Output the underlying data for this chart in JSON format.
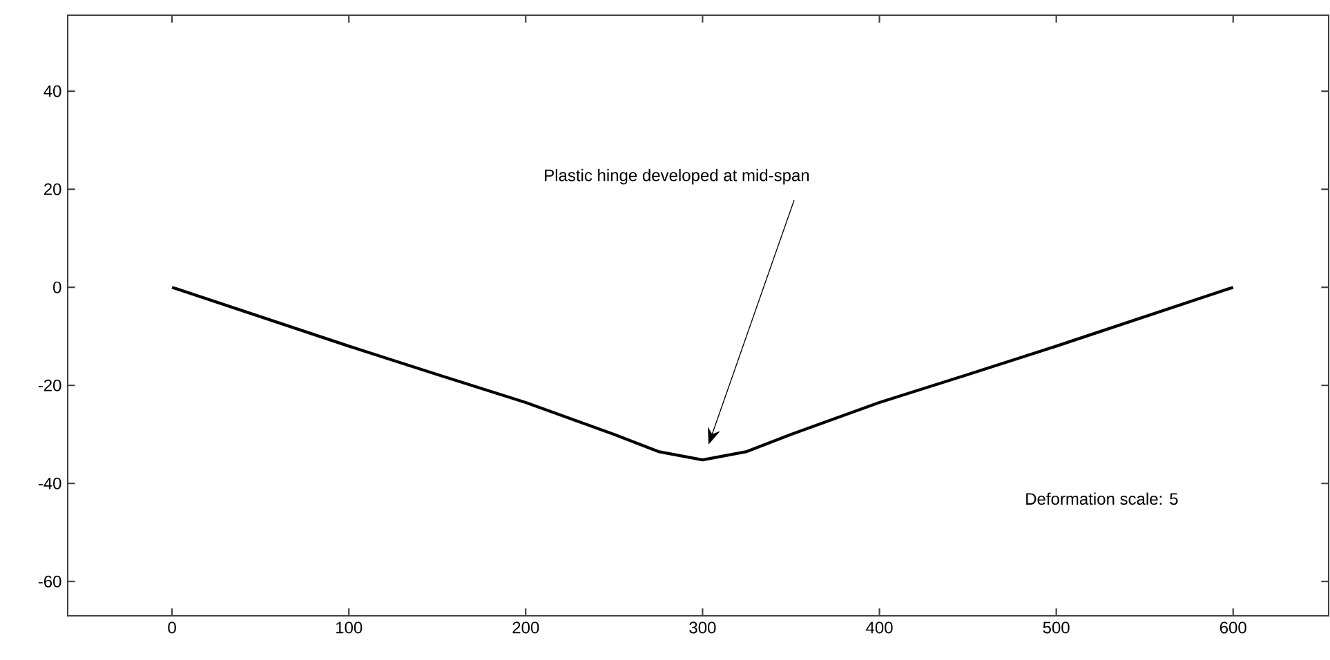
{
  "chart_data": {
    "type": "line",
    "x": [
      0,
      50,
      100,
      150,
      200,
      250,
      275,
      300,
      325,
      350,
      400,
      450,
      500,
      550,
      600
    ],
    "series": [
      {
        "color": "#000000",
        "values": [
          0,
          -6,
          -12,
          -17.8,
          -23.5,
          -30,
          -33.5,
          -35.2,
          -33.5,
          -30,
          -23.5,
          -17.8,
          -12,
          -6,
          0
        ]
      }
    ],
    "xlim": [
      -59,
      654
    ],
    "ylim": [
      -67,
      55.5
    ],
    "xticks": [
      0,
      100,
      200,
      300,
      400,
      500,
      600
    ],
    "yticks": [
      -60,
      -40,
      -20,
      0,
      20,
      40
    ],
    "annotations": [
      "Plastic hinge developed at mid-span",
      "Deformation scale: 5"
    ]
  }
}
